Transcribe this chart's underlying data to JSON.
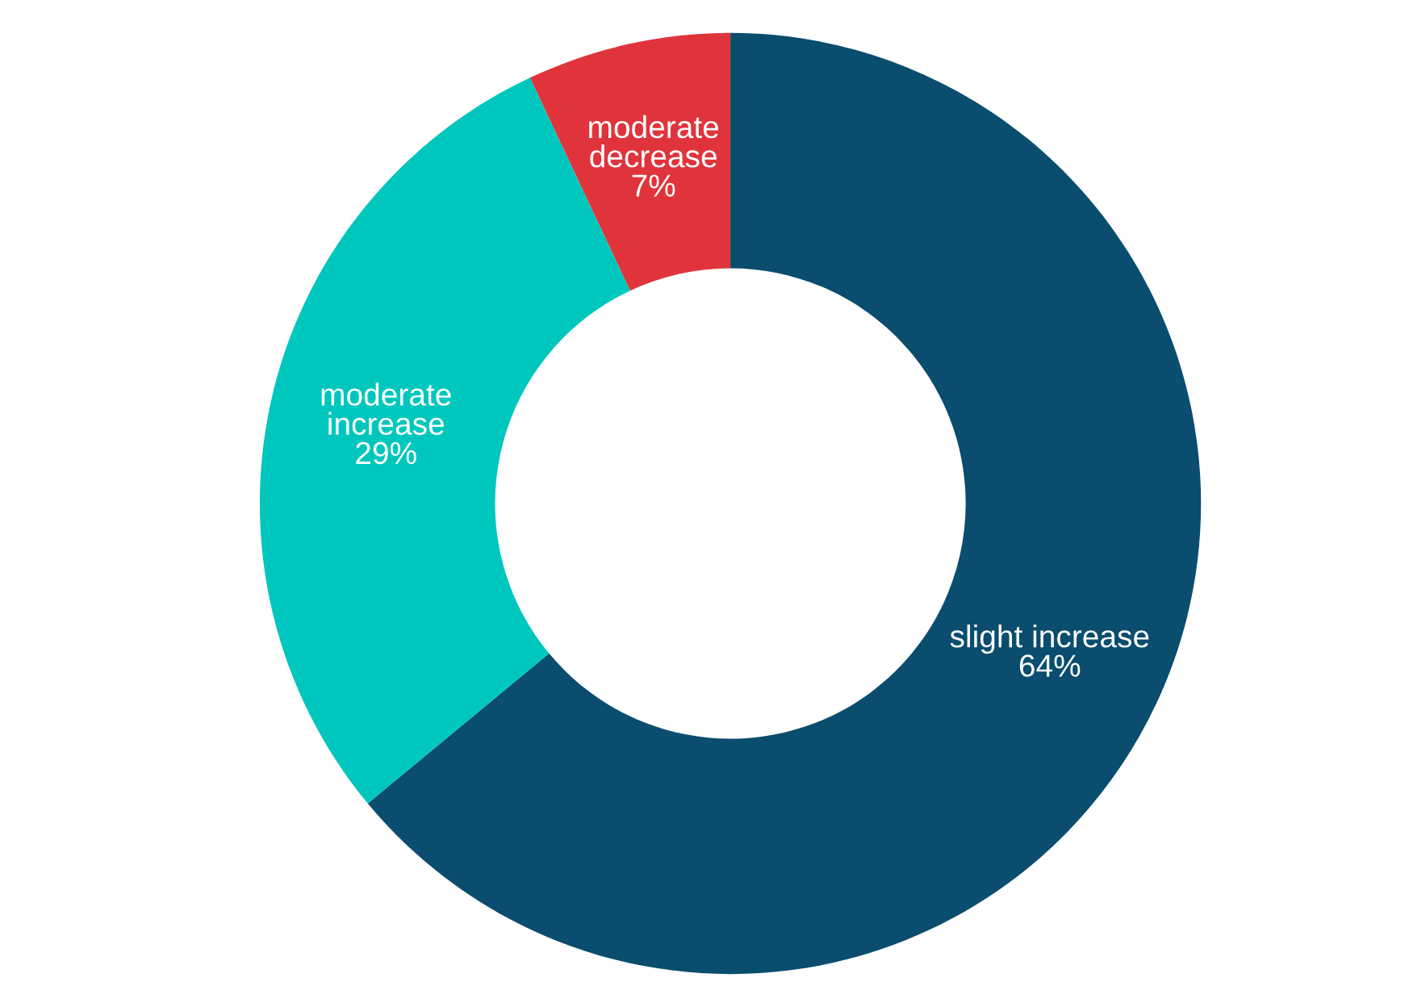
{
  "chart_data": {
    "type": "donut",
    "categories": [
      "slight increase",
      "moderate increase",
      "moderate decrease"
    ],
    "values": [
      64,
      29,
      7
    ],
    "value_labels": [
      "64%",
      "29%",
      "7%"
    ],
    "colors": [
      "#0a4d6e",
      "#00c7bd",
      "#e0343c"
    ],
    "legend": false
  }
}
